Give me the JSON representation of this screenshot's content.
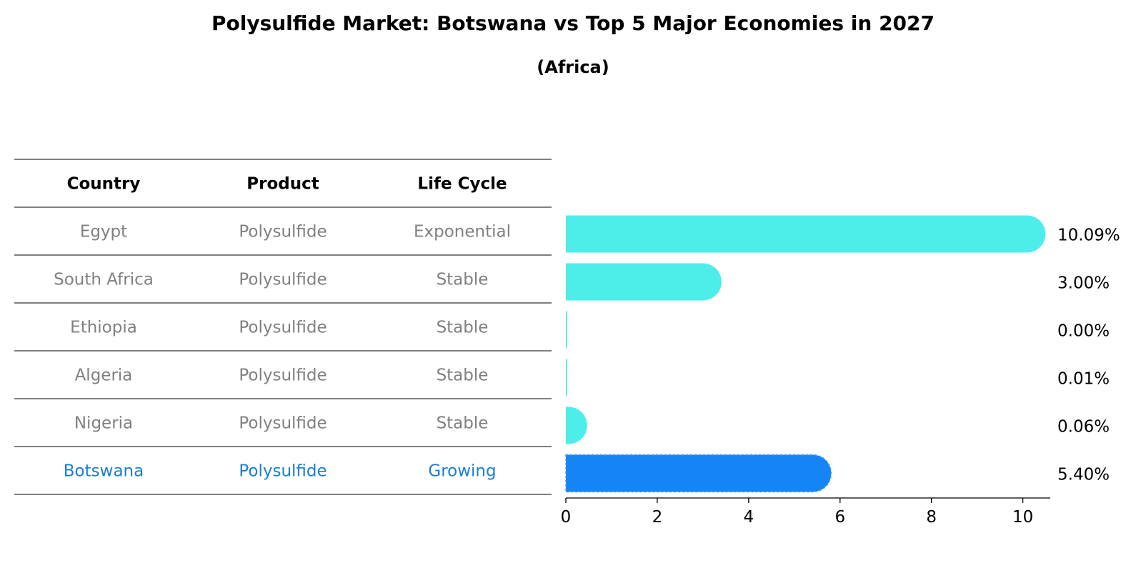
{
  "header": {
    "title": "Polysulfide Market: Botswana vs Top 5 Major Economies in 2027",
    "subtitle": "(Africa)"
  },
  "table": {
    "columns": [
      "Country",
      "Product",
      "Life Cycle"
    ],
    "rows": [
      {
        "country": "Egypt",
        "product": "Polysulfide",
        "life_cycle": "Exponential"
      },
      {
        "country": "South Africa",
        "product": "Polysulfide",
        "life_cycle": "Stable"
      },
      {
        "country": "Ethiopia",
        "product": "Polysulfide",
        "life_cycle": "Stable"
      },
      {
        "country": "Algeria",
        "product": "Polysulfide",
        "life_cycle": "Stable"
      },
      {
        "country": "Nigeria",
        "product": "Polysulfide",
        "life_cycle": "Stable"
      },
      {
        "country": "Botswana",
        "product": "Polysulfide",
        "life_cycle": "Growing"
      }
    ]
  },
  "chart_data": {
    "type": "bar",
    "orientation": "horizontal",
    "categories": [
      "Egypt",
      "South Africa",
      "Ethiopia",
      "Algeria",
      "Nigeria",
      "Botswana"
    ],
    "values": [
      10.09,
      3.0,
      0.0,
      0.01,
      0.06,
      5.4
    ],
    "labels": [
      "10.09%",
      "3.00%",
      "0.00%",
      "0.01%",
      "0.06%",
      "5.40%"
    ],
    "highlight": "Botswana",
    "xlim": [
      0,
      10.6
    ],
    "xticks": [
      0,
      2,
      4,
      6,
      8,
      10
    ],
    "grid": false,
    "colors": {
      "default": "#4DEEEA",
      "highlight": "#1585F5",
      "muted_text": "#808080",
      "highlight_text": "#1a7fd4"
    }
  }
}
